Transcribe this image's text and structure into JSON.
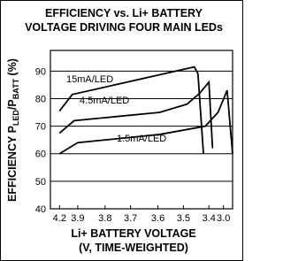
{
  "chart_data": {
    "type": "line",
    "title": [
      "EFFICIENCY vs. Li+ BATTERY",
      "VOLTAGE DRIVING FOUR MAIN LEDs"
    ],
    "ylabel": [
      "EFFICIENCY P",
      "LED",
      "/P",
      "BATT",
      " (%)"
    ],
    "xlabel": [
      "Li+ BATTERY VOLTAGE",
      "(V, TIME-WEIGHTED)"
    ],
    "ylim": [
      40,
      97.5
    ],
    "yticks": [
      40,
      50,
      60,
      70,
      80,
      90
    ],
    "xlim": [
      0,
      100
    ],
    "xticks": [
      {
        "value": 5,
        "label": "4.2"
      },
      {
        "value": 15,
        "label": "3.9"
      },
      {
        "value": 30,
        "label": "3.8"
      },
      {
        "value": 44,
        "label": "3.7"
      },
      {
        "value": 59,
        "label": "3.6"
      },
      {
        "value": 73,
        "label": "3.5"
      },
      {
        "value": 87,
        "label": "3.4"
      },
      {
        "value": 95,
        "label": "3.0"
      }
    ],
    "grid": true,
    "series": [
      {
        "name": "15mA/LED",
        "color": "#000000",
        "x": [
          5,
          12,
          79,
          81,
          84
        ],
        "values": [
          75.5,
          81.5,
          91.5,
          89,
          60
        ]
      },
      {
        "name": "4.5mA/LED",
        "color": "#000000",
        "x": [
          5,
          13,
          60,
          75,
          82,
          87,
          89
        ],
        "values": [
          67.5,
          72,
          75,
          78,
          82,
          86,
          62
        ]
      },
      {
        "name": "1.5mA/LED",
        "color": "#000000",
        "x": [
          5,
          15,
          60,
          85,
          92,
          97,
          100
        ],
        "values": [
          60,
          64,
          67,
          70,
          75,
          83,
          60
        ]
      }
    ]
  }
}
